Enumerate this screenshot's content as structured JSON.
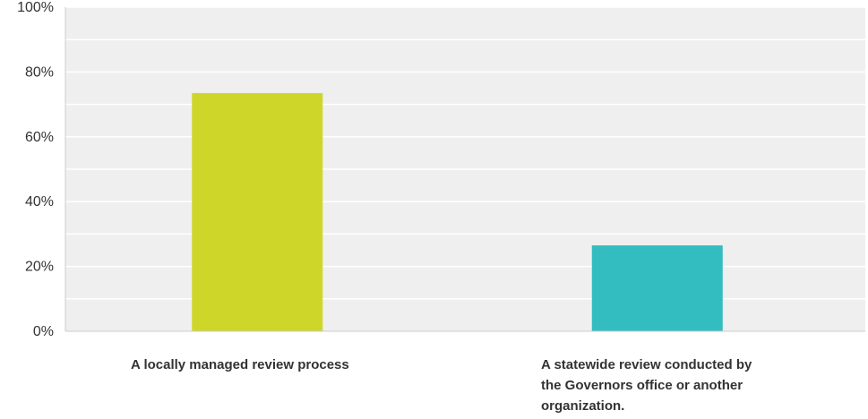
{
  "chart_data": {
    "type": "bar",
    "categories": [
      "A locally managed review process",
      "A statewide review conducted by\nthe Governors office or another\norganization."
    ],
    "values": [
      73.5,
      26.5
    ],
    "colors": [
      "#cfd62a",
      "#34bdc0"
    ],
    "ylim": [
      0,
      100
    ],
    "yticks": [
      "0%",
      "20%",
      "40%",
      "60%",
      "80%",
      "100%"
    ],
    "ytick_values": [
      0,
      20,
      40,
      60,
      80,
      100
    ],
    "grid": true,
    "title": "",
    "xlabel": "",
    "ylabel": ""
  }
}
